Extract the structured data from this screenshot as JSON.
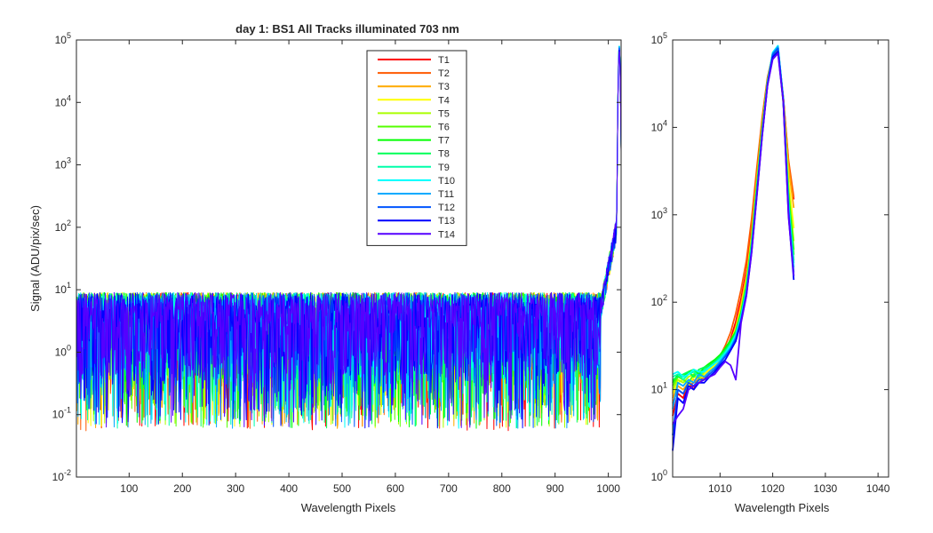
{
  "title": "day 1: BS1   All Tracks illuminated   703 nm",
  "chart_data": [
    {
      "type": "line",
      "xlabel": "Wavelength Pixels",
      "ylabel": "Signal (ADU/pix/sec)",
      "xlim": [
        1,
        1024
      ],
      "ylim": [
        0.01,
        100000
      ],
      "yscale": "log",
      "xticks": [
        "100",
        "200",
        "300",
        "400",
        "500",
        "600",
        "700",
        "800",
        "900",
        "1000"
      ],
      "xtick_values": [
        100,
        200,
        300,
        400,
        500,
        600,
        700,
        800,
        900,
        1000
      ],
      "yticks": [
        {
          "base": "10",
          "exp": "-2"
        },
        {
          "base": "10",
          "exp": "-1"
        },
        {
          "base": "10",
          "exp": "0"
        },
        {
          "base": "10",
          "exp": "1"
        },
        {
          "base": "10",
          "exp": "2"
        },
        {
          "base": "10",
          "exp": "3"
        },
        {
          "base": "10",
          "exp": "4"
        },
        {
          "base": "10",
          "exp": "5"
        }
      ],
      "ytick_values": [
        0.01,
        0.1,
        1,
        10,
        100,
        1000,
        10000,
        100000
      ],
      "legend_position": "top-center",
      "series": [
        {
          "name": "T1",
          "color": "#ff0000",
          "floor": 0.055,
          "peak": 80000
        },
        {
          "name": "T2",
          "color": "#ff5a00",
          "floor": 0.055,
          "peak": 82000
        },
        {
          "name": "T3",
          "color": "#ffaa00",
          "floor": 0.06,
          "peak": 80000
        },
        {
          "name": "T4",
          "color": "#ffff00",
          "floor": 0.06,
          "peak": 78000
        },
        {
          "name": "T5",
          "color": "#aaff00",
          "floor": 0.06,
          "peak": 78000
        },
        {
          "name": "T6",
          "color": "#55ff00",
          "floor": 0.06,
          "peak": 80000
        },
        {
          "name": "T7",
          "color": "#00ff00",
          "floor": 0.06,
          "peak": 82000
        },
        {
          "name": "T8",
          "color": "#00ff55",
          "floor": 0.06,
          "peak": 84000
        },
        {
          "name": "T9",
          "color": "#00ffaa",
          "floor": 0.06,
          "peak": 85000
        },
        {
          "name": "T10",
          "color": "#00ffff",
          "floor": 0.06,
          "peak": 86000
        },
        {
          "name": "T11",
          "color": "#00aaff",
          "floor": 0.06,
          "peak": 84000
        },
        {
          "name": "T12",
          "color": "#0055ff",
          "floor": 0.06,
          "peak": 80000
        },
        {
          "name": "T13",
          "color": "#0000ff",
          "floor": 0.06,
          "peak": 74000
        },
        {
          "name": "T14",
          "color": "#5500ff",
          "floor": 0.06,
          "peak": 70000
        }
      ]
    },
    {
      "type": "line",
      "xlabel": "Wavelength Pixels",
      "ylabel": "",
      "xlim": [
        1001,
        1042
      ],
      "ylim": [
        1,
        100000
      ],
      "yscale": "log",
      "xticks": [
        "1010",
        "1020",
        "1030",
        "1040"
      ],
      "xtick_values": [
        1010,
        1020,
        1030,
        1040
      ],
      "yticks": [
        {
          "base": "10",
          "exp": "0"
        },
        {
          "base": "10",
          "exp": "1"
        },
        {
          "base": "10",
          "exp": "2"
        },
        {
          "base": "10",
          "exp": "3"
        },
        {
          "base": "10",
          "exp": "4"
        },
        {
          "base": "10",
          "exp": "5"
        }
      ],
      "ytick_values": [
        1,
        10,
        100,
        1000,
        10000,
        100000
      ],
      "x": [
        1001,
        1002,
        1003,
        1004,
        1005,
        1006,
        1007,
        1008,
        1009,
        1010,
        1011,
        1012,
        1013,
        1014,
        1015,
        1016,
        1017,
        1018,
        1019,
        1020,
        1021,
        1022,
        1023,
        1024
      ],
      "series": [
        {
          "name": "T1",
          "color": "#ff0000",
          "values": [
            5,
            9,
            8,
            12,
            10,
            14,
            13,
            16,
            18,
            22,
            28,
            38,
            60,
            110,
            230,
            700,
            3000,
            12000,
            35000,
            65000,
            80000,
            22000,
            4000,
            1500
          ]
        },
        {
          "name": "T2",
          "color": "#ff5a00",
          "values": [
            7,
            10,
            9,
            11,
            12,
            13,
            15,
            17,
            19,
            24,
            32,
            45,
            75,
            140,
            300,
            900,
            3500,
            13000,
            37000,
            68000,
            82000,
            22000,
            4200,
            1600
          ]
        },
        {
          "name": "T3",
          "color": "#ffaa00",
          "values": [
            8,
            11,
            10,
            12,
            13,
            12,
            14,
            16,
            18,
            21,
            26,
            34,
            52,
            95,
            200,
            600,
            2600,
            11000,
            34000,
            67000,
            80000,
            20000,
            3500,
            1200
          ]
        },
        {
          "name": "T4",
          "color": "#ffff00",
          "values": [
            9,
            12,
            13,
            11,
            14,
            13,
            15,
            17,
            19,
            22,
            27,
            36,
            50,
            85,
            180,
            550,
            2400,
            10000,
            33000,
            66000,
            78000,
            19000,
            2500,
            700
          ]
        },
        {
          "name": "T5",
          "color": "#aaff00",
          "values": [
            10,
            13,
            12,
            14,
            15,
            13,
            16,
            18,
            20,
            23,
            28,
            35,
            48,
            80,
            170,
            520,
            2300,
            10000,
            33000,
            67000,
            78000,
            19000,
            2000,
            500
          ]
        },
        {
          "name": "T6",
          "color": "#55ff00",
          "values": [
            11,
            14,
            13,
            12,
            15,
            16,
            17,
            19,
            21,
            24,
            29,
            36,
            47,
            78,
            160,
            500,
            2200,
            9800,
            33000,
            68000,
            80000,
            19500,
            1800,
            400
          ]
        },
        {
          "name": "T7",
          "color": "#00ff00",
          "values": [
            12,
            15,
            14,
            16,
            17,
            15,
            18,
            20,
            22,
            25,
            30,
            37,
            46,
            75,
            150,
            480,
            2100,
            9500,
            33000,
            69000,
            82000,
            20000,
            1600,
            350
          ]
        },
        {
          "name": "T8",
          "color": "#00ff55",
          "values": [
            13,
            14,
            15,
            16,
            14,
            17,
            18,
            19,
            21,
            24,
            28,
            34,
            44,
            72,
            145,
            460,
            2000,
            9200,
            33000,
            70000,
            84000,
            21000,
            1500,
            300
          ]
        },
        {
          "name": "T9",
          "color": "#00ffaa",
          "values": [
            14,
            15,
            13,
            15,
            16,
            14,
            17,
            18,
            20,
            23,
            27,
            33,
            43,
            70,
            140,
            440,
            1900,
            9000,
            32000,
            71000,
            85000,
            21000,
            1400,
            280
          ]
        },
        {
          "name": "T10",
          "color": "#00ffff",
          "values": [
            15,
            16,
            14,
            15,
            17,
            16,
            16,
            18,
            20,
            22,
            26,
            32,
            42,
            68,
            135,
            420,
            1850,
            8800,
            32000,
            72000,
            86000,
            21500,
            1300,
            250
          ]
        },
        {
          "name": "T11",
          "color": "#00aaff",
          "values": [
            6,
            12,
            11,
            13,
            12,
            15,
            14,
            16,
            18,
            21,
            25,
            30,
            40,
            65,
            130,
            400,
            1800,
            8500,
            31000,
            70000,
            84000,
            21000,
            1200,
            220
          ]
        },
        {
          "name": "T12",
          "color": "#0055ff",
          "values": [
            3,
            10,
            9,
            12,
            11,
            13,
            13,
            15,
            17,
            20,
            24,
            29,
            38,
            62,
            125,
            390,
            1750,
            8300,
            31000,
            68000,
            80000,
            20500,
            1100,
            200
          ]
        },
        {
          "name": "T13",
          "color": "#0000ff",
          "values": [
            2,
            8,
            7,
            11,
            10,
            12,
            12,
            14,
            16,
            19,
            22,
            28,
            36,
            60,
            120,
            380,
            1700,
            8200,
            30000,
            64000,
            74000,
            20000,
            1000,
            180
          ]
        },
        {
          "name": "T14",
          "color": "#5500ff",
          "values": [
            4,
            5,
            6,
            10,
            11,
            12,
            13,
            14,
            15,
            18,
            21,
            19,
            13,
            58,
            118,
            370,
            1650,
            8000,
            30000,
            60000,
            70000,
            19500,
            950,
            200
          ]
        }
      ]
    }
  ]
}
